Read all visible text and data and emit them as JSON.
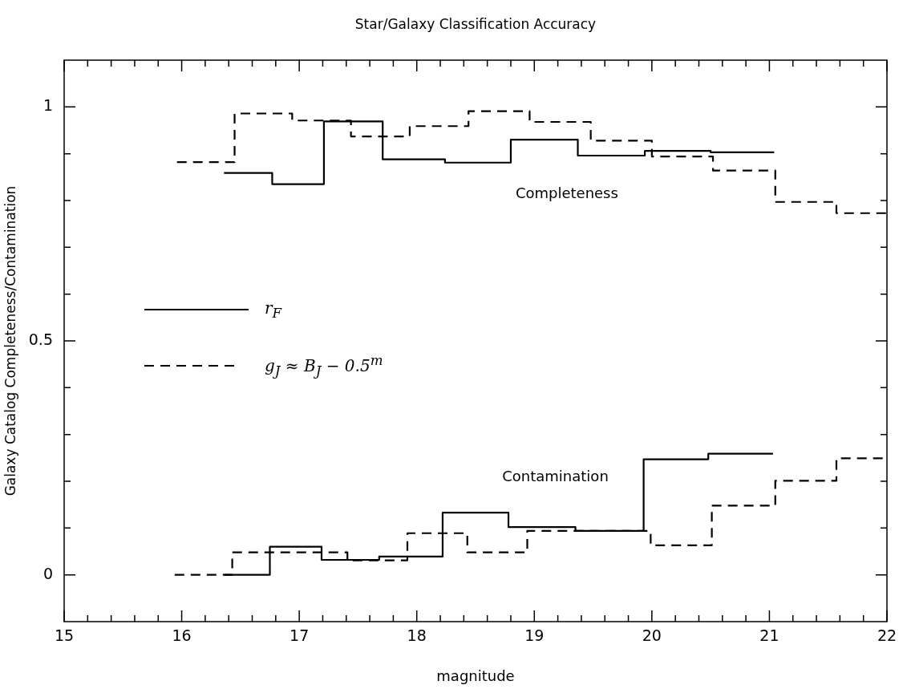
{
  "chart_data": {
    "type": "step",
    "title": "Star/Galaxy Classification Accuracy",
    "xlabel": "magnitude",
    "ylabel": "Galaxy Catalog Completeness/Contamination",
    "xlim": [
      15,
      22
    ],
    "ylim": [
      -0.1,
      1.1
    ],
    "xticks": [
      15,
      {
        "value": 15.2,
        "label": null
      },
      {
        "value": 15.4,
        "label": null
      },
      {
        "value": 15.6,
        "label": null
      },
      {
        "value": 15.8,
        "label": null
      },
      16,
      {
        "value": 16.2,
        "label": null
      },
      {
        "value": 16.4,
        "label": null
      },
      {
        "value": 16.6,
        "label": null
      },
      {
        "value": 16.8,
        "label": null
      },
      17,
      {
        "value": 17.2,
        "label": null
      },
      {
        "value": 17.4,
        "label": null
      },
      {
        "value": 17.6,
        "label": null
      },
      {
        "value": 17.8,
        "label": null
      },
      18,
      {
        "value": 18.2,
        "label": null
      },
      {
        "value": 18.4,
        "label": null
      },
      {
        "value": 18.6,
        "label": null
      },
      {
        "value": 18.8,
        "label": null
      },
      19,
      {
        "value": 19.2,
        "label": null
      },
      {
        "value": 19.4,
        "label": null
      },
      {
        "value": 19.6,
        "label": null
      },
      {
        "value": 19.8,
        "label": null
      },
      20,
      {
        "value": 20.2,
        "label": null
      },
      {
        "value": 20.4,
        "label": null
      },
      {
        "value": 20.6,
        "label": null
      },
      {
        "value": 20.8,
        "label": null
      },
      21,
      {
        "value": 21.2,
        "label": null
      },
      {
        "value": 21.4,
        "label": null
      },
      {
        "value": 21.6,
        "label": null
      },
      {
        "value": 21.8,
        "label": null
      },
      22
    ],
    "yticks": [
      0,
      {
        "value": 0.1,
        "label": null
      },
      {
        "value": 0.2,
        "label": null
      },
      {
        "value": 0.3,
        "label": null
      },
      {
        "value": 0.4,
        "label": null
      },
      0.5,
      {
        "value": 0.6,
        "label": null
      },
      {
        "value": 0.7,
        "label": null
      },
      {
        "value": 0.8,
        "label": null
      },
      {
        "value": 0.9,
        "label": null
      },
      1
    ],
    "legend": "left",
    "grid": false,
    "series": [
      {
        "name": "r$_{F}$",
        "color": "#000000",
        "line_style": "solid",
        "x": [
          16.36,
          16.77,
          17.21,
          17.71,
          18.24,
          18.8,
          19.37,
          19.94,
          20.5,
          21.04
        ],
        "values": [
          0.859,
          0.835,
          0.969,
          0.888,
          0.881,
          0.93,
          0.896,
          0.906,
          0.903,
          0.903
        ]
      },
      {
        "name": "g$_{J}$ ≈ B$_{J}$ − 0.5$^{m}$",
        "color": "#000000",
        "line_style": "dashed",
        "x": [
          15.96,
          16.45,
          16.94,
          17.44,
          17.94,
          18.44,
          18.96,
          19.48,
          20.0,
          20.52,
          21.05,
          21.57,
          22
        ],
        "values": [
          0.882,
          0.986,
          0.971,
          0.937,
          0.959,
          0.991,
          0.968,
          0.928,
          0.894,
          0.864,
          0.797,
          0.773,
          0.773
        ]
      },
      {
        "color": "#000000",
        "line_style": "solid",
        "x": [
          16.36,
          16.75,
          17.19,
          17.68,
          18.22,
          18.78,
          19.35,
          19.93,
          20.48,
          21.03
        ],
        "values": [
          0.0,
          0.06,
          0.032,
          0.039,
          0.133,
          0.102,
          0.094,
          0.247,
          0.259,
          0.259
        ]
      },
      {
        "color": "#000000",
        "line_style": "dashed",
        "x": [
          15.94,
          16.43,
          17.41,
          17.92,
          18.43,
          18.94,
          19.99,
          20.51,
          21.05,
          21.57,
          22
        ],
        "values": [
          0.0,
          0.048,
          0.031,
          0.089,
          0.048,
          0.094,
          0.063,
          0.148,
          0.201,
          0.249,
          0.249
        ]
      }
    ],
    "annotations": [
      "Completeness",
      "Contamination"
    ]
  }
}
